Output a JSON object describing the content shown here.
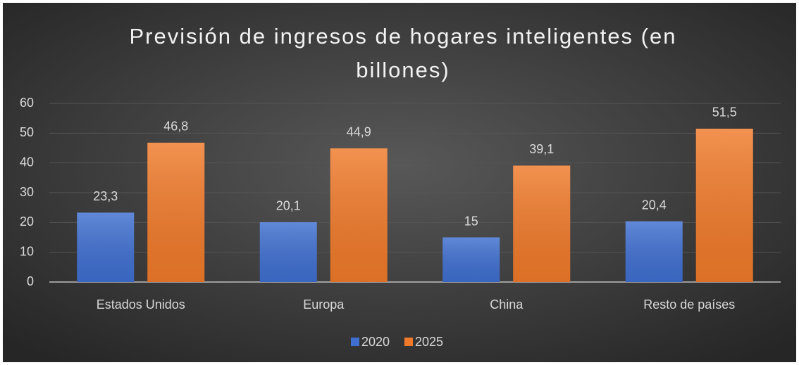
{
  "chart_data": {
    "type": "bar",
    "title": "Previsión de ingresos de hogares inteligentes (en billones)",
    "categories": [
      "Estados Unidos",
      "Europa",
      "China",
      "Resto de países"
    ],
    "series": [
      {
        "name": "2020",
        "color": "#3f6fd0",
        "values": [
          23.3,
          20.1,
          15,
          20.4
        ],
        "value_labels": [
          "23,3",
          "20,1",
          "15",
          "20,4"
        ]
      },
      {
        "name": "2025",
        "color": "#f07a2a",
        "values": [
          46.8,
          44.9,
          39.1,
          51.5
        ],
        "value_labels": [
          "46,8",
          "44,9",
          "39,1",
          "51,5"
        ]
      }
    ],
    "ylim": [
      0,
      60
    ],
    "yticks": [
      0,
      10,
      20,
      30,
      40,
      50,
      60
    ],
    "grid": true,
    "legend": "bottom"
  }
}
